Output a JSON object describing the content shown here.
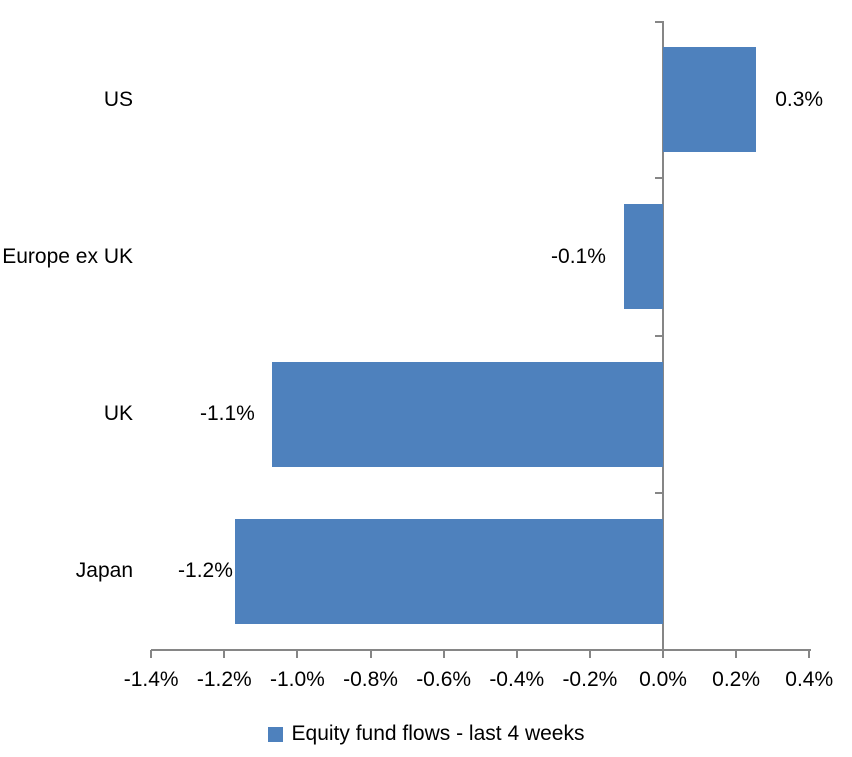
{
  "chart_data": {
    "type": "bar",
    "orientation": "horizontal",
    "title": "",
    "categories": [
      "US",
      "Europe ex UK",
      "UK",
      "Japan"
    ],
    "values": [
      0.3,
      -0.1,
      -1.1,
      -1.2
    ],
    "data_labels": [
      "0.3%",
      "-0.1%",
      "-1.1%",
      "-1.2%"
    ],
    "values_precise_pct": [
      0.255,
      -0.107,
      -1.07,
      -1.171
    ],
    "series": [
      {
        "name": "Equity fund flows - last 4 weeks",
        "values": [
          0.3,
          -0.1,
          -1.1,
          -1.2
        ]
      }
    ],
    "x_axis": {
      "min": -1.4,
      "max": 0.4,
      "step": 0.2,
      "tick_labels": [
        "-1.4%",
        "-1.2%",
        "-1.0%",
        "-0.8%",
        "-0.6%",
        "-0.4%",
        "-0.2%",
        "0.0%",
        "0.2%",
        "0.4%"
      ],
      "unit": "%"
    },
    "legend": {
      "position": "bottom-center",
      "label": "Equity fund flows - last 4 weeks"
    },
    "grid": "off",
    "colors": {
      "bar": "#4E81BD",
      "axis": "#868686",
      "text": "#000000",
      "background": "#FFFFFF"
    }
  }
}
